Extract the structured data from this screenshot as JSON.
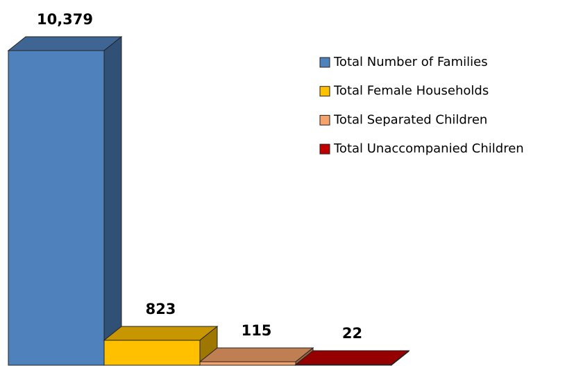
{
  "chart_data": {
    "type": "bar",
    "series": [
      {
        "name": "Total Number of Families",
        "color": "#4f81bd",
        "values": [
          10379
        ],
        "value_labels": [
          "10,379"
        ]
      },
      {
        "name": "Total Female Households",
        "color": "#ffc000",
        "values": [
          823
        ],
        "value_labels": [
          "823"
        ]
      },
      {
        "name": "Total Separated Children",
        "color": "#f5a36b",
        "values": [
          115
        ],
        "value_labels": [
          "115"
        ]
      },
      {
        "name": "Total Unaccompanied Children",
        "color": "#c00000",
        "values": [
          22
        ],
        "value_labels": [
          "22"
        ]
      }
    ],
    "legend": "right"
  }
}
